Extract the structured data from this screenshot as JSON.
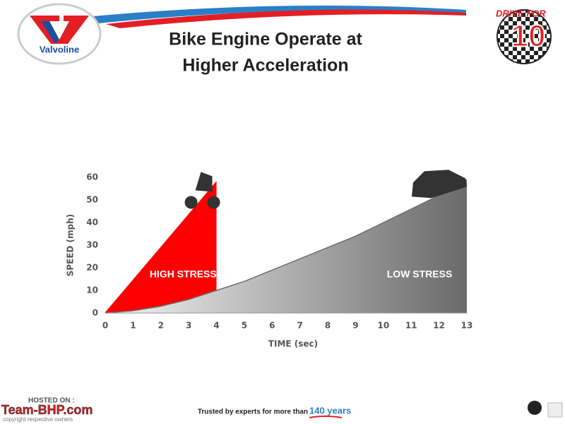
{
  "slide": {
    "title_lines": [
      "Bike Engine Operate at",
      "Higher Acceleration"
    ],
    "logo": "Valvoline",
    "badge_top": "DRIVE FOR",
    "badge_number": "10",
    "footer": {
      "trust_text": "Trusted by experts for more than",
      "trust_years": "140 years",
      "hosted": "HOSTED ON :",
      "site": "Team-BHP.com",
      "copyright": "copyright respective owners"
    }
  },
  "chart_data": {
    "type": "area",
    "x_label": "TIME (sec)",
    "y_label": "SPEED (mph)",
    "xlim": [
      0,
      13
    ],
    "xticks": [
      0,
      1,
      2,
      3,
      4,
      5,
      6,
      7,
      8,
      9,
      10,
      11,
      12,
      13
    ],
    "ylim": [
      0,
      60
    ],
    "yticks": [
      0,
      10,
      20,
      30,
      40,
      50,
      60
    ],
    "annotations": [
      "HIGH STRESS",
      "LOW STRESS"
    ],
    "series": [
      {
        "color": "#ff0000",
        "x": [
          0,
          4
        ],
        "values": [
          0,
          58
        ]
      },
      {
        "color": "#6e6e6e",
        "x": [
          0,
          1,
          2,
          3,
          4,
          5,
          6,
          7,
          8,
          9,
          10,
          11,
          12,
          13
        ],
        "values": [
          0,
          1,
          3,
          6,
          10,
          14,
          19,
          24,
          29,
          34,
          40,
          46,
          52,
          59
        ]
      }
    ]
  }
}
